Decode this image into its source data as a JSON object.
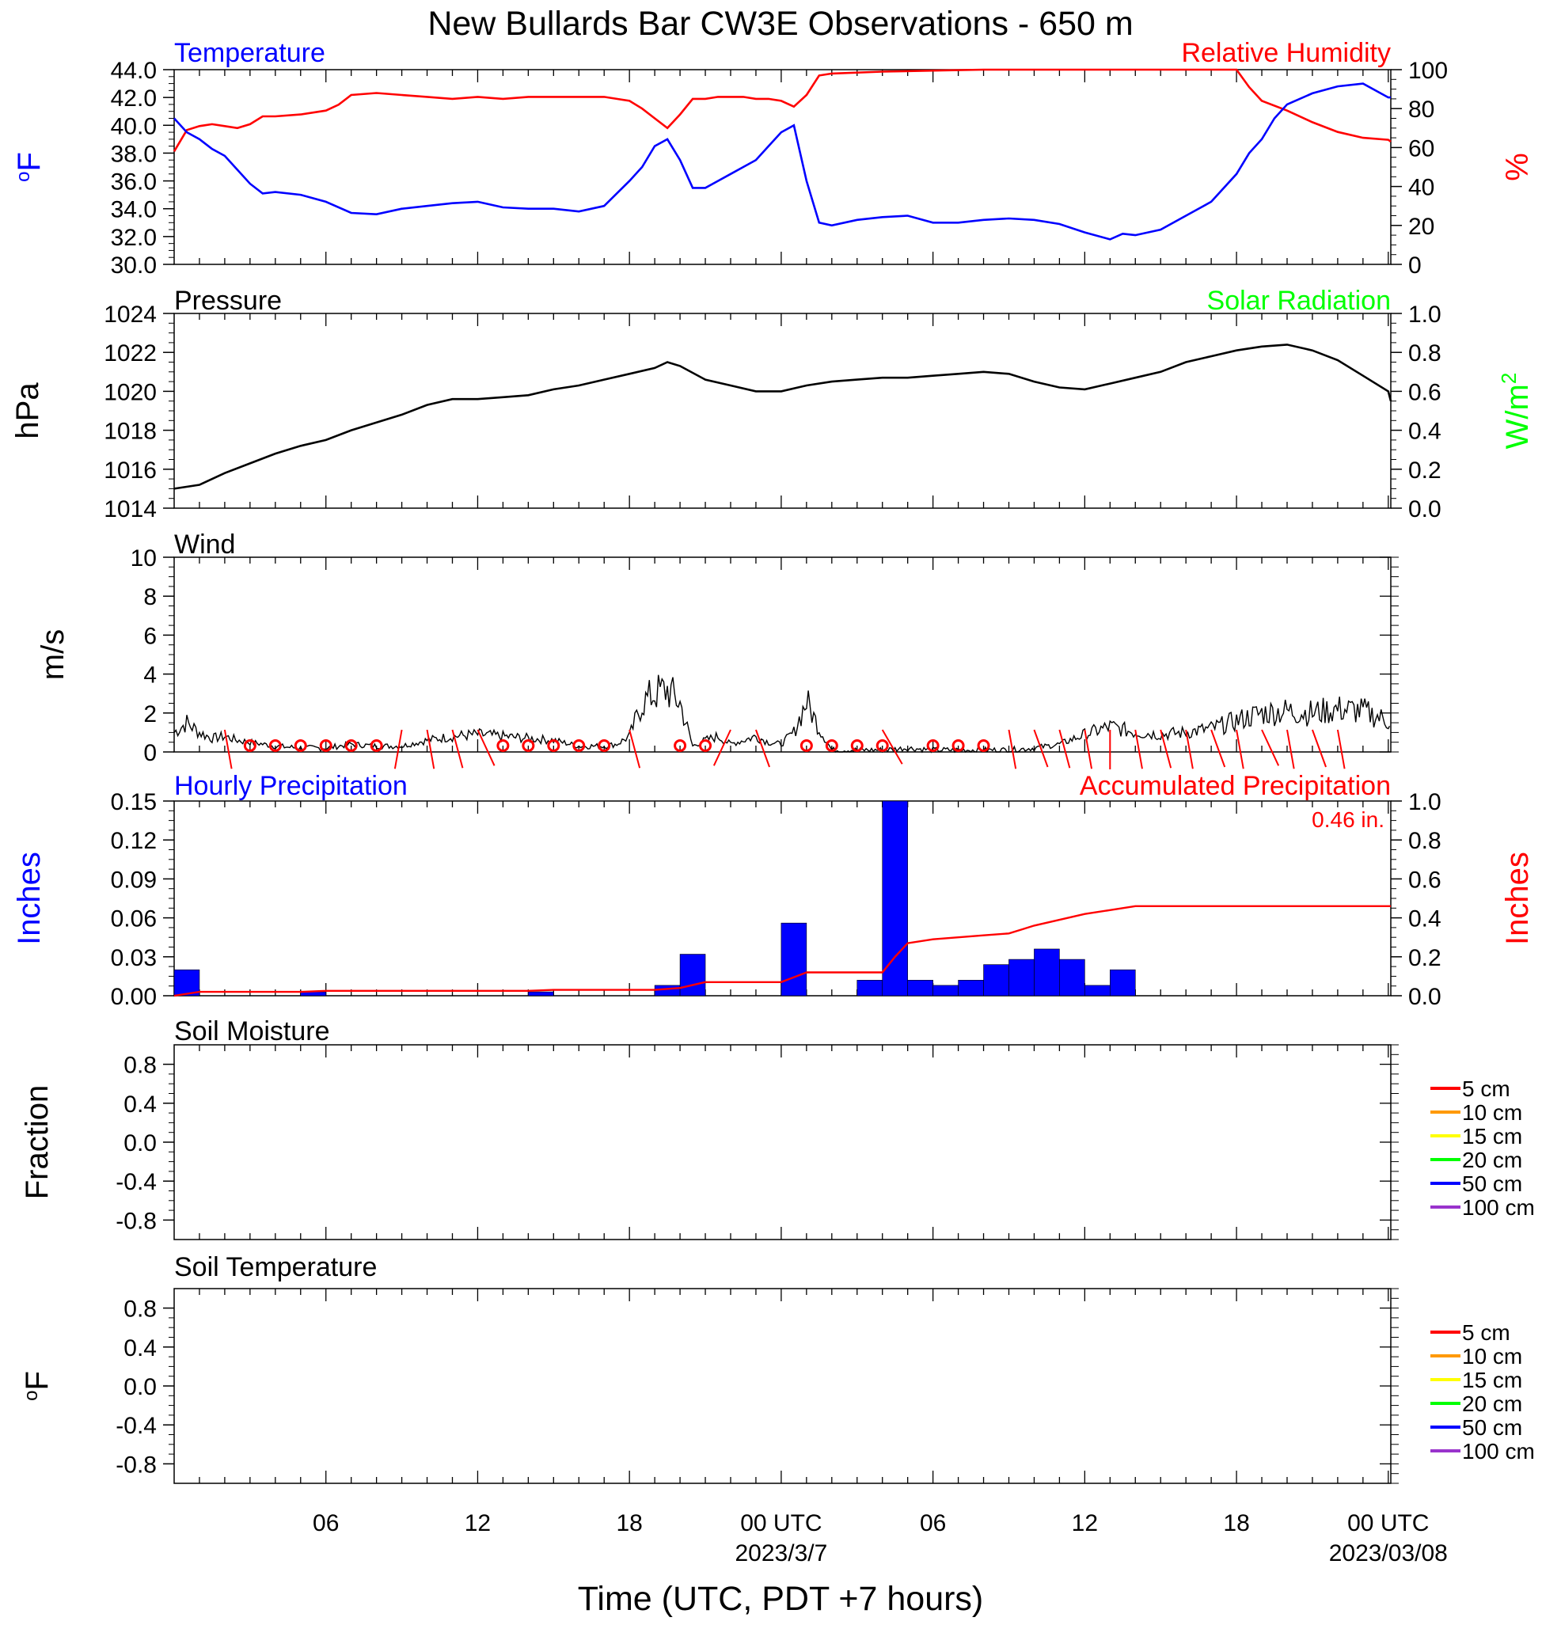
{
  "title": "New Bullards Bar CW3E Observations - 650 m",
  "xlabel": "Time (UTC, PDT +7 hours)",
  "x_ticks": [
    {
      "hours": 6,
      "label": "06",
      "date": ""
    },
    {
      "hours": 12,
      "label": "12",
      "date": ""
    },
    {
      "hours": 18,
      "label": "18",
      "date": ""
    },
    {
      "hours": 24,
      "label": "00 UTC",
      "date": "2023/3/7"
    },
    {
      "hours": 30,
      "label": "06",
      "date": ""
    },
    {
      "hours": 36,
      "label": "12",
      "date": ""
    },
    {
      "hours": 42,
      "label": "18",
      "date": ""
    },
    {
      "hours": 48,
      "label": "00 UTC",
      "date": "2023/03/08"
    }
  ],
  "panels": {
    "temp_rh": {
      "left_title": "Temperature",
      "right_title": "Relative Humidity",
      "left_unit": "oF",
      "right_unit": "%",
      "left_ticks": [
        "44.0",
        "42.0",
        "40.0",
        "38.0",
        "36.0",
        "34.0",
        "32.0",
        "30.0"
      ],
      "right_ticks": [
        "100",
        "80",
        "60",
        "40",
        "20",
        "0"
      ]
    },
    "pressure": {
      "left_title": "Pressure",
      "right_title": "Solar Radiation",
      "left_unit": "hPa",
      "right_unit": "W/m2",
      "left_ticks": [
        "1024",
        "1022",
        "1020",
        "1018",
        "1016",
        "1014"
      ],
      "right_ticks": [
        "1.0",
        "0.8",
        "0.6",
        "0.4",
        "0.2",
        "0.0"
      ]
    },
    "wind": {
      "left_title": "Wind",
      "left_unit": "m/s",
      "left_ticks": [
        "10",
        "8",
        "6",
        "4",
        "2",
        "0"
      ]
    },
    "precip": {
      "left_title": "Hourly Precipitation",
      "right_title": "Accumulated Precipitation",
      "total_label": "0.46 in.",
      "left_unit": "Inches",
      "right_unit": "Inches",
      "left_ticks": [
        "0.15",
        "0.12",
        "0.09",
        "0.06",
        "0.03",
        "0.00"
      ],
      "right_ticks": [
        "1.0",
        "0.8",
        "0.6",
        "0.4",
        "0.2",
        "0.0"
      ]
    },
    "soil_moisture": {
      "left_title": "Soil Moisture",
      "left_unit": "Fraction",
      "left_ticks": [
        "0.8",
        "0.4",
        "0.0",
        "-0.4",
        "-0.8"
      ],
      "legend": [
        "5 cm",
        "10 cm",
        "15 cm",
        "20 cm",
        "50 cm",
        "100 cm"
      ]
    },
    "soil_temp": {
      "left_title": "Soil Temperature",
      "left_unit": "oF",
      "left_ticks": [
        "0.8",
        "0.4",
        "0.0",
        "-0.4",
        "-0.8"
      ],
      "legend": [
        "5 cm",
        "10 cm",
        "15 cm",
        "20 cm",
        "50 cm",
        "100 cm"
      ]
    }
  },
  "colors": {
    "temperature": "#0000ff",
    "rh": "#ff0000",
    "solar": "#00ff00",
    "legend": [
      "#ff0000",
      "#ff9900",
      "#ffff00",
      "#00ff00",
      "#0000ff",
      "#9933cc"
    ]
  },
  "chart_data": [
    {
      "type": "line",
      "title": "",
      "x_range_hours": [
        0,
        48.1
      ],
      "series": [
        {
          "name": "Temperature",
          "axis": "left",
          "ylim": [
            30,
            44
          ],
          "x": [
            0,
            0.5,
            1,
            1.5,
            2,
            2.5,
            3,
            3.5,
            4,
            5,
            6,
            7,
            8,
            9,
            10,
            11,
            12,
            13,
            14,
            15,
            16,
            17,
            18,
            18.5,
            19,
            19.5,
            20,
            20.5,
            21,
            21.5,
            22,
            22.5,
            23,
            23.5,
            24,
            24.5,
            25,
            25.5,
            26,
            27,
            28,
            29,
            30,
            31,
            32,
            33,
            34,
            35,
            36,
            37,
            37.5,
            38,
            39,
            40,
            40.5,
            41,
            42,
            42.5,
            43,
            43.5,
            44,
            45,
            46,
            47,
            48,
            48.1
          ],
          "values": [
            40.5,
            39.5,
            39.0,
            38.3,
            37.8,
            36.8,
            35.8,
            35.1,
            35.2,
            35.0,
            34.5,
            33.7,
            33.6,
            34.0,
            34.2,
            34.4,
            34.5,
            34.1,
            34.0,
            34.0,
            33.8,
            34.2,
            36.0,
            37.0,
            38.5,
            39.0,
            37.5,
            35.5,
            35.5,
            36.0,
            36.5,
            37.0,
            37.5,
            38.5,
            39.5,
            40.0,
            36.0,
            33.0,
            32.8,
            33.2,
            33.4,
            33.5,
            33.0,
            33.0,
            33.2,
            33.3,
            33.2,
            32.9,
            32.3,
            31.8,
            32.2,
            32.1,
            32.5,
            33.5,
            34.0,
            34.5,
            36.5,
            38.0,
            39.0,
            40.5,
            41.5,
            42.3,
            42.8,
            43.0,
            42.0,
            42.0
          ]
        },
        {
          "name": "Relative Humidity",
          "axis": "right",
          "ylim": [
            0,
            100
          ],
          "x": [
            0,
            0.5,
            1,
            1.5,
            2,
            2.5,
            3,
            3.5,
            4,
            5,
            6,
            6.5,
            7,
            8,
            9,
            10,
            11,
            12,
            13,
            14,
            15,
            16,
            17,
            17.5,
            18,
            18.5,
            19,
            19.5,
            20,
            20.5,
            21,
            21.5,
            22,
            22.5,
            23,
            23.5,
            24,
            24.5,
            25,
            25.5,
            26,
            28,
            30,
            32,
            34,
            36,
            38,
            40,
            41,
            41.5,
            42,
            42.5,
            43,
            44,
            45,
            46,
            47,
            48,
            48.1
          ],
          "values": [
            58,
            69,
            71,
            72,
            71,
            70,
            72,
            76,
            76,
            77,
            79,
            82,
            87,
            88,
            87,
            86,
            85,
            86,
            85,
            86,
            86,
            86,
            86,
            85,
            84,
            80,
            75,
            70,
            77,
            85,
            85,
            86,
            86,
            86,
            85,
            85,
            84,
            81,
            87,
            97,
            98,
            99,
            99.5,
            100,
            100,
            100,
            100,
            100,
            100,
            100,
            100,
            91,
            84,
            79,
            73,
            68,
            65,
            64,
            63
          ]
        }
      ]
    },
    {
      "type": "line",
      "title": "",
      "series": [
        {
          "name": "Pressure",
          "ylim": [
            1014,
            1024
          ],
          "x": [
            0,
            1,
            2,
            3,
            4,
            5,
            6,
            7,
            8,
            9,
            10,
            11,
            12,
            13,
            14,
            15,
            16,
            17,
            18,
            19,
            19.5,
            20,
            21,
            22,
            23,
            24,
            25,
            26,
            27,
            28,
            29,
            30,
            31,
            32,
            33,
            34,
            35,
            36,
            37,
            38,
            39,
            40,
            41,
            42,
            43,
            44,
            45,
            46,
            47,
            48,
            48.1
          ],
          "values": [
            1015.0,
            1015.2,
            1015.8,
            1016.3,
            1016.8,
            1017.2,
            1017.5,
            1018.0,
            1018.4,
            1018.8,
            1019.3,
            1019.6,
            1019.6,
            1019.7,
            1019.8,
            1020.1,
            1020.3,
            1020.6,
            1020.9,
            1021.2,
            1021.5,
            1021.3,
            1020.6,
            1020.3,
            1020.0,
            1020.0,
            1020.3,
            1020.5,
            1020.6,
            1020.7,
            1020.7,
            1020.8,
            1020.9,
            1021.0,
            1020.9,
            1020.5,
            1020.2,
            1020.1,
            1020.4,
            1020.7,
            1021.0,
            1021.5,
            1021.8,
            1022.1,
            1022.3,
            1022.4,
            1022.1,
            1021.6,
            1020.8,
            1020.0,
            1019.5
          ]
        }
      ]
    },
    {
      "type": "line",
      "title": "",
      "series": [
        {
          "name": "Wind",
          "ylim": [
            0,
            10
          ],
          "x": [
            0,
            0.5,
            1,
            1.5,
            2,
            2.5,
            3,
            4,
            5,
            6,
            7,
            8,
            9,
            10,
            11,
            12,
            13,
            14,
            15,
            16,
            17,
            17.5,
            18,
            18.5,
            19,
            19.5,
            20,
            20.5,
            21,
            21.5,
            22,
            22.5,
            23,
            23.5,
            24,
            24.5,
            25,
            25.5,
            26,
            27,
            28,
            29,
            30,
            31,
            32,
            33,
            34,
            35,
            36,
            37,
            38,
            39,
            40,
            41,
            42,
            43,
            44,
            45,
            46,
            47,
            48,
            48.1
          ],
          "values": [
            1.0,
            1.5,
            1.0,
            0.7,
            0.8,
            0.6,
            0.5,
            0.3,
            0.2,
            0.2,
            0.4,
            0.3,
            0.3,
            0.6,
            0.8,
            0.9,
            0.8,
            0.7,
            0.6,
            0.3,
            0.3,
            0.4,
            0.8,
            2.5,
            3.0,
            3.2,
            2.5,
            0.3,
            0.6,
            0.8,
            0.4,
            0.6,
            0.8,
            0.5,
            0.4,
            1.0,
            2.6,
            1.2,
            0.1,
            0.1,
            0.1,
            0.2,
            0.1,
            0.1,
            0.1,
            0.1,
            0.2,
            0.4,
            0.9,
            1.3,
            1.0,
            0.9,
            1.0,
            1.2,
            1.6,
            2.0,
            2.1,
            2.0,
            2.2,
            2.1,
            1.6,
            1.5
          ]
        }
      ]
    },
    {
      "type": "bar",
      "title": "",
      "series": [
        {
          "name": "Hourly Precipitation",
          "axis": "left",
          "ylim": [
            0,
            0.15
          ],
          "x": [
            0.5,
            5.5,
            14.5,
            19.5,
            20.5,
            24.5,
            27.5,
            28.5,
            29.5,
            30.5,
            31.5,
            32.5,
            33.5,
            34.5,
            35.5,
            36.5,
            37.5
          ],
          "values": [
            0.02,
            0.003,
            0.003,
            0.008,
            0.032,
            0.056,
            0.012,
            0.15,
            0.012,
            0.008,
            0.012,
            0.024,
            0.028,
            0.036,
            0.028,
            0.008,
            0.02
          ]
        },
        {
          "name": "Accumulated Precipitation",
          "axis": "right",
          "ylim": [
            0,
            1.0
          ],
          "type": "line",
          "x": [
            0,
            1,
            5,
            6,
            14,
            15,
            19,
            20,
            21,
            24,
            25,
            26,
            27,
            28,
            28.5,
            29,
            30,
            31,
            32,
            33,
            33.5,
            34,
            35,
            36,
            37,
            38,
            48.1
          ],
          "values": [
            0.0,
            0.02,
            0.02,
            0.025,
            0.025,
            0.03,
            0.03,
            0.04,
            0.07,
            0.07,
            0.12,
            0.12,
            0.12,
            0.12,
            0.2,
            0.27,
            0.29,
            0.3,
            0.31,
            0.32,
            0.34,
            0.36,
            0.39,
            0.42,
            0.44,
            0.46,
            0.46
          ]
        }
      ]
    }
  ]
}
